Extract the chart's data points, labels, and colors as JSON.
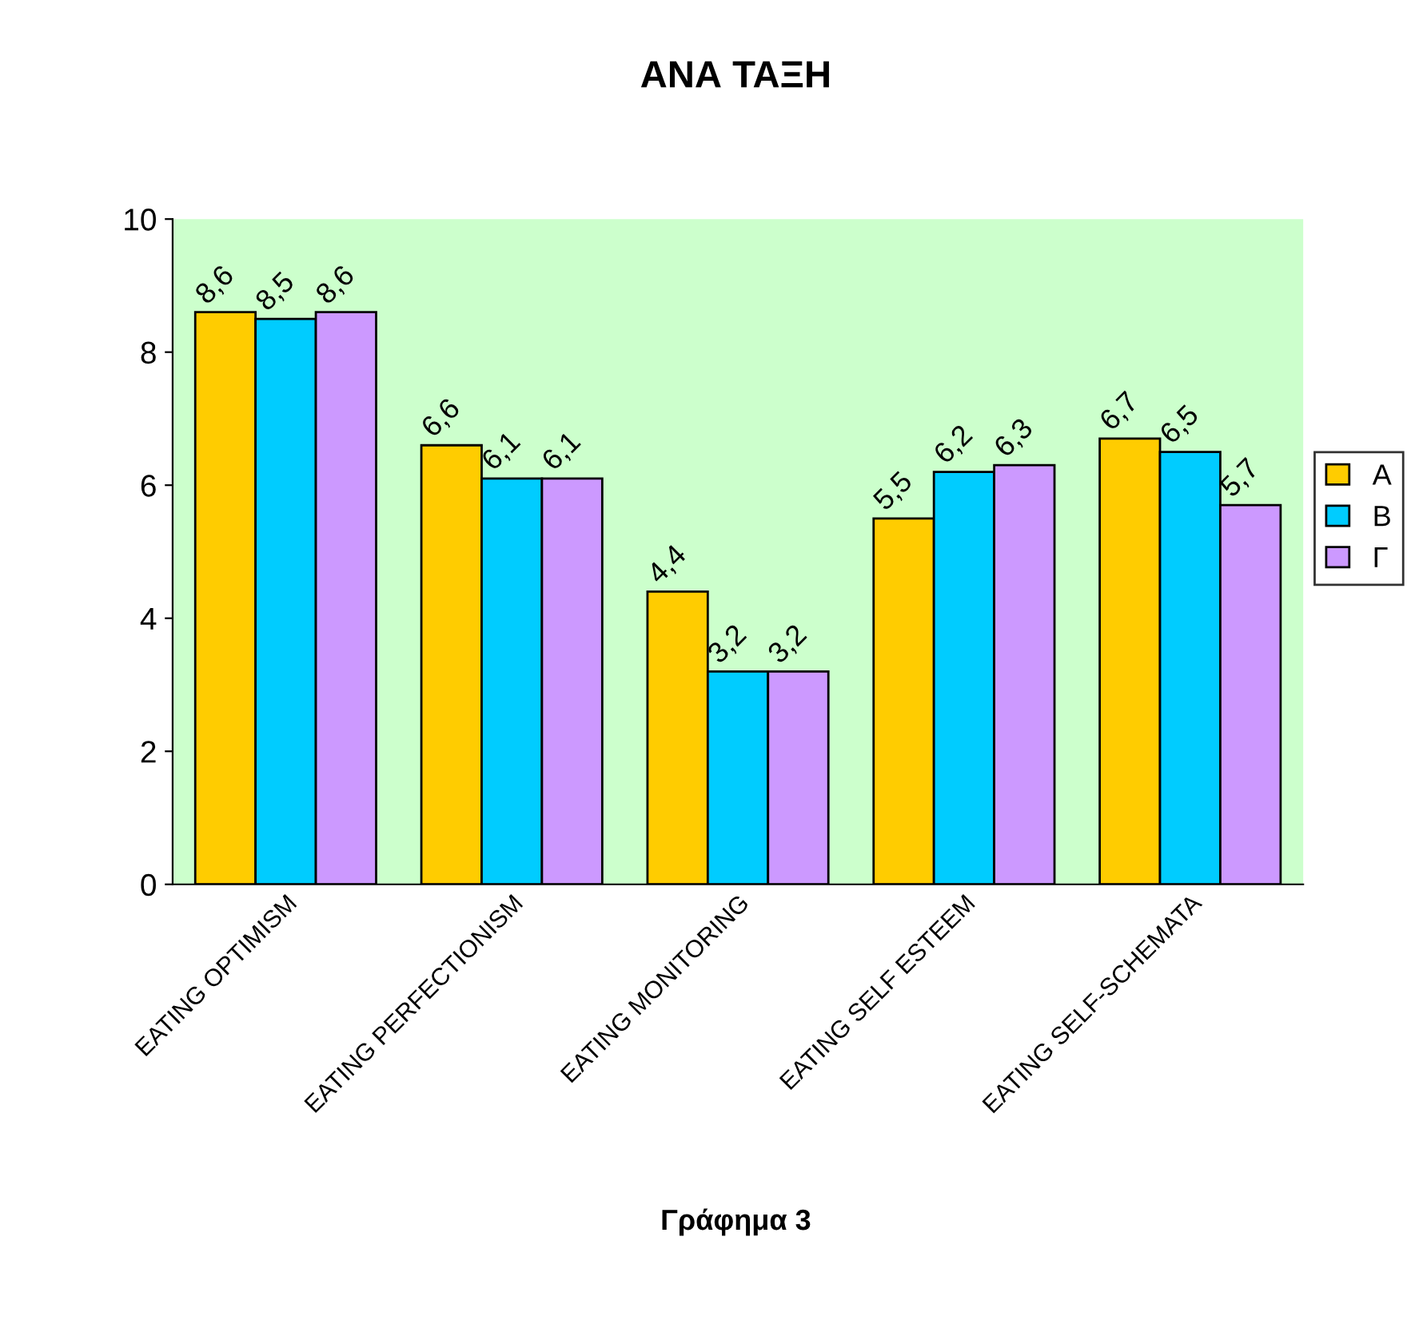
{
  "chart_data": {
    "type": "bar",
    "title": "ΑΝΑ ΤΑΞΗ",
    "categories": [
      "EATING OPTIMISM",
      "EATING PERFECTIONISM",
      "EATING MONITORING",
      "EATING SELF ESTEEM",
      "EATING SELF-SCHEMATA"
    ],
    "series": [
      {
        "name": "Α",
        "color": "#ffcc00",
        "values": [
          8.6,
          6.6,
          4.4,
          5.5,
          6.7
        ],
        "value_labels": [
          "8,6",
          "6,6",
          "4,4",
          "5,5",
          "6,7"
        ]
      },
      {
        "name": "Β",
        "color": "#00ccff",
        "values": [
          8.5,
          6.1,
          3.2,
          6.2,
          6.5
        ],
        "value_labels": [
          "8,5",
          "6,1",
          "3,2",
          "6,2",
          "6,5"
        ]
      },
      {
        "name": "Γ",
        "color": "#cc99ff",
        "values": [
          8.6,
          6.1,
          3.2,
          6.3,
          5.7
        ],
        "value_labels": [
          "8,6",
          "6,1",
          "3,2",
          "6,3",
          "5,7"
        ]
      }
    ],
    "ylim": [
      0,
      10
    ],
    "yticks": [
      0,
      2,
      4,
      6,
      8,
      10
    ],
    "grid": false,
    "legend": "right",
    "annotations": [
      "Γράφημα 3"
    ]
  }
}
